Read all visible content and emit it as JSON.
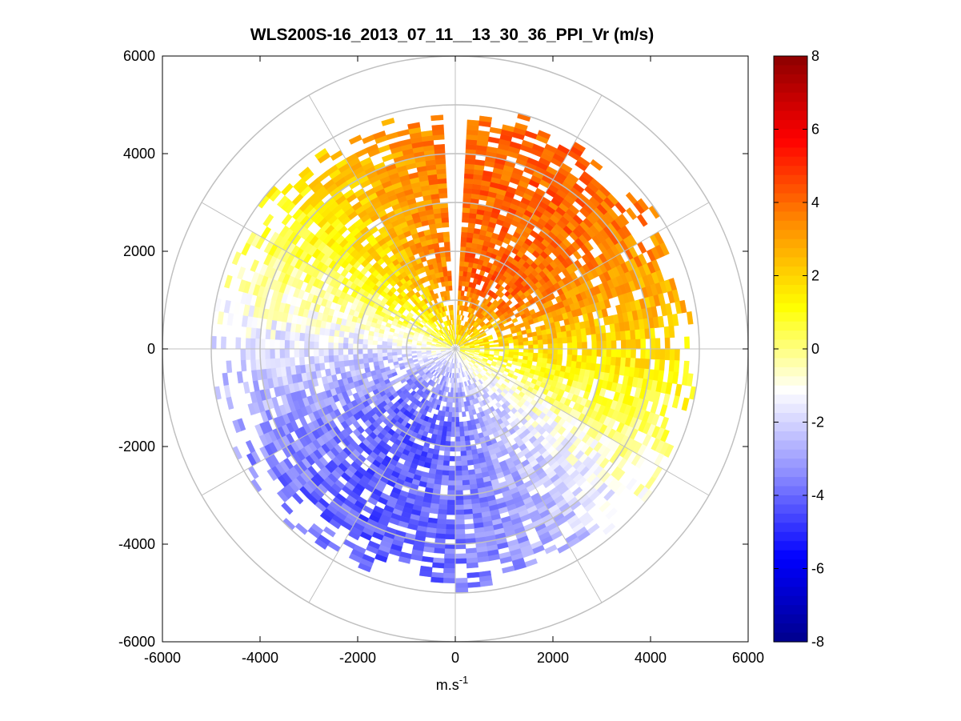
{
  "chart_data": {
    "type": "heatmap",
    "subtype": "polar-ppi",
    "title": "WLS200S-16_2013_07_11__13_30_36_PPI_Vr (m/s)",
    "xlabel": "m.s",
    "xlabel_superscript": "-1",
    "ylabel": "",
    "xlim": [
      -6000,
      6000
    ],
    "ylim": [
      -6000,
      6000
    ],
    "xticks": [
      "-6000",
      "-4000",
      "-2000",
      "0",
      "2000",
      "4000",
      "6000"
    ],
    "yticks": [
      "6000",
      "4000",
      "2000",
      "0",
      "-2000",
      "-4000",
      "-6000"
    ],
    "polar_grid": {
      "ring_radii": [
        1000,
        2000,
        3000,
        4000,
        5000,
        6000
      ],
      "spoke_angles_deg": [
        0,
        30,
        60,
        90,
        120,
        150,
        180,
        210,
        240,
        270,
        300,
        330
      ]
    },
    "data_extent": {
      "range_min": 100,
      "range_max": 5000,
      "gate_length": 100,
      "azimuth_step_deg": 3,
      "masked_sector_deg": [
        -3,
        3
      ]
    },
    "velocity_pattern": {
      "amplitude": 4.2,
      "direction_deg": 25,
      "description": "Positive radial velocity (receding) toward north / north-east, negative (approaching) toward south / south-west"
    },
    "colorbar": {
      "min": -8,
      "max": 8,
      "ticks": [
        "8",
        "6",
        "4",
        "2",
        "0",
        "-2",
        "-4",
        "-6",
        "-8"
      ],
      "colormap": [
        "#00008c",
        "#0000ff",
        "#8c8cff",
        "#ffffff",
        "#ffff00",
        "#ff8c00",
        "#ff0000",
        "#8c0000"
      ]
    },
    "grid_color": "#c0c0c0"
  }
}
